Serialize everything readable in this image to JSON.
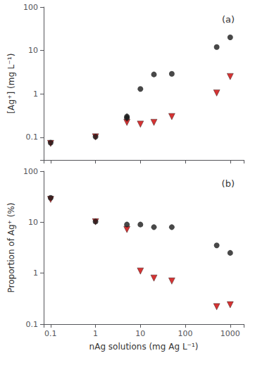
{
  "chart_data": [
    {
      "type": "scatter",
      "title": "(a)",
      "ylabel": "[Ag⁺] (mg L⁻¹)",
      "log": true,
      "grid": false,
      "tick_labels": "y",
      "xlim": [
        0.07,
        2000
      ],
      "xticks": [
        0.1,
        1,
        10,
        100,
        1000
      ],
      "ylim": [
        0.03,
        100
      ],
      "yticks": [
        0.1,
        1,
        10,
        100
      ],
      "series": [
        {
          "color": "#cc0000",
          "marker": "triangle-down",
          "x": [
            0.1,
            1.0,
            5.0,
            10.0,
            20.0,
            50.0,
            500.0,
            1000.0
          ],
          "values": [
            0.072,
            0.102,
            0.22,
            0.2,
            0.22,
            0.3,
            1.05,
            2.5
          ]
        },
        {
          "color": "#1a1a1a",
          "marker": "circle",
          "x": [
            0.1,
            1.0,
            5.0,
            5.0,
            10.0,
            20.0,
            50.0,
            500.0,
            1000.0
          ],
          "values": [
            0.075,
            0.103,
            0.28,
            0.3,
            1.3,
            2.8,
            2.9,
            12.0,
            20.0
          ],
          "error_low": [
            null,
            null,
            null,
            0.07,
            null,
            null,
            null,
            null,
            null
          ],
          "error_high": [
            null,
            null,
            null,
            0.05,
            null,
            null,
            null,
            null,
            null
          ]
        }
      ]
    },
    {
      "type": "scatter",
      "title": "(b)",
      "ylabel": "Proportion of Ag⁺ (%)",
      "xlabel": "nAg solutions (mg Ag L⁻¹)",
      "log": true,
      "grid": false,
      "xlim": [
        0.07,
        2000
      ],
      "xticks": [
        0.1,
        1,
        10,
        100,
        1000
      ],
      "ylim": [
        0.1,
        100
      ],
      "yticks": [
        0.1,
        1,
        10,
        100
      ],
      "series": [
        {
          "color": "#cc0000",
          "marker": "triangle-down",
          "x": [
            0.1,
            1.0,
            5.0,
            10.0,
            20.0,
            50.0,
            500.0,
            1000.0
          ],
          "values": [
            28.0,
            10.2,
            7.2,
            1.1,
            0.8,
            0.7,
            0.22,
            0.24
          ]
        },
        {
          "color": "#1a1a1a",
          "marker": "circle",
          "x": [
            0.1,
            1.0,
            5.0,
            10.0,
            20.0,
            50.0,
            500.0,
            1000.0
          ],
          "values": [
            30.0,
            10.3,
            9.0,
            9.0,
            8.0,
            8.0,
            3.5,
            2.5
          ]
        }
      ]
    }
  ]
}
